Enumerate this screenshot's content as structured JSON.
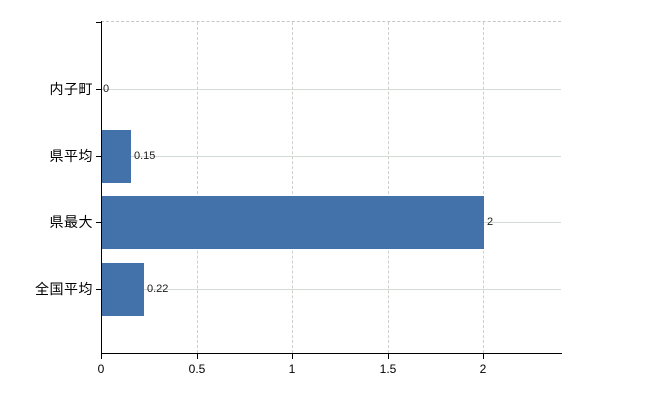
{
  "chart_data": {
    "type": "bar",
    "orientation": "horizontal",
    "title": "",
    "categories": [
      "内子町",
      "県平均",
      "県最大",
      "全国平均"
    ],
    "values": [
      0,
      0.15,
      2,
      0.22
    ],
    "value_labels": [
      "0",
      "0.15",
      "2",
      "0.22"
    ],
    "x_axis": {
      "ticks": [
        0,
        0.5,
        1,
        1.5,
        2
      ],
      "tick_labels": [
        "0",
        "0.5",
        "1",
        "1.5",
        "2"
      ],
      "range": [
        0,
        2.41
      ]
    },
    "ylabel": "",
    "xlabel": "",
    "legend": false,
    "grid": {
      "horizontal_style": "solid",
      "vertical_style": "dashed",
      "top_border_style": "dashed"
    },
    "colors": {
      "bar": "#4272a9",
      "grid_solid": "#d4dad4",
      "grid_dashed": "#c9d1c9",
      "top_border": "#c6c6c6",
      "axis": "#000000",
      "category_text": "#000000",
      "tick_text": "#000000",
      "value_text": "#1a1a1a",
      "background": "#ffffff"
    }
  }
}
